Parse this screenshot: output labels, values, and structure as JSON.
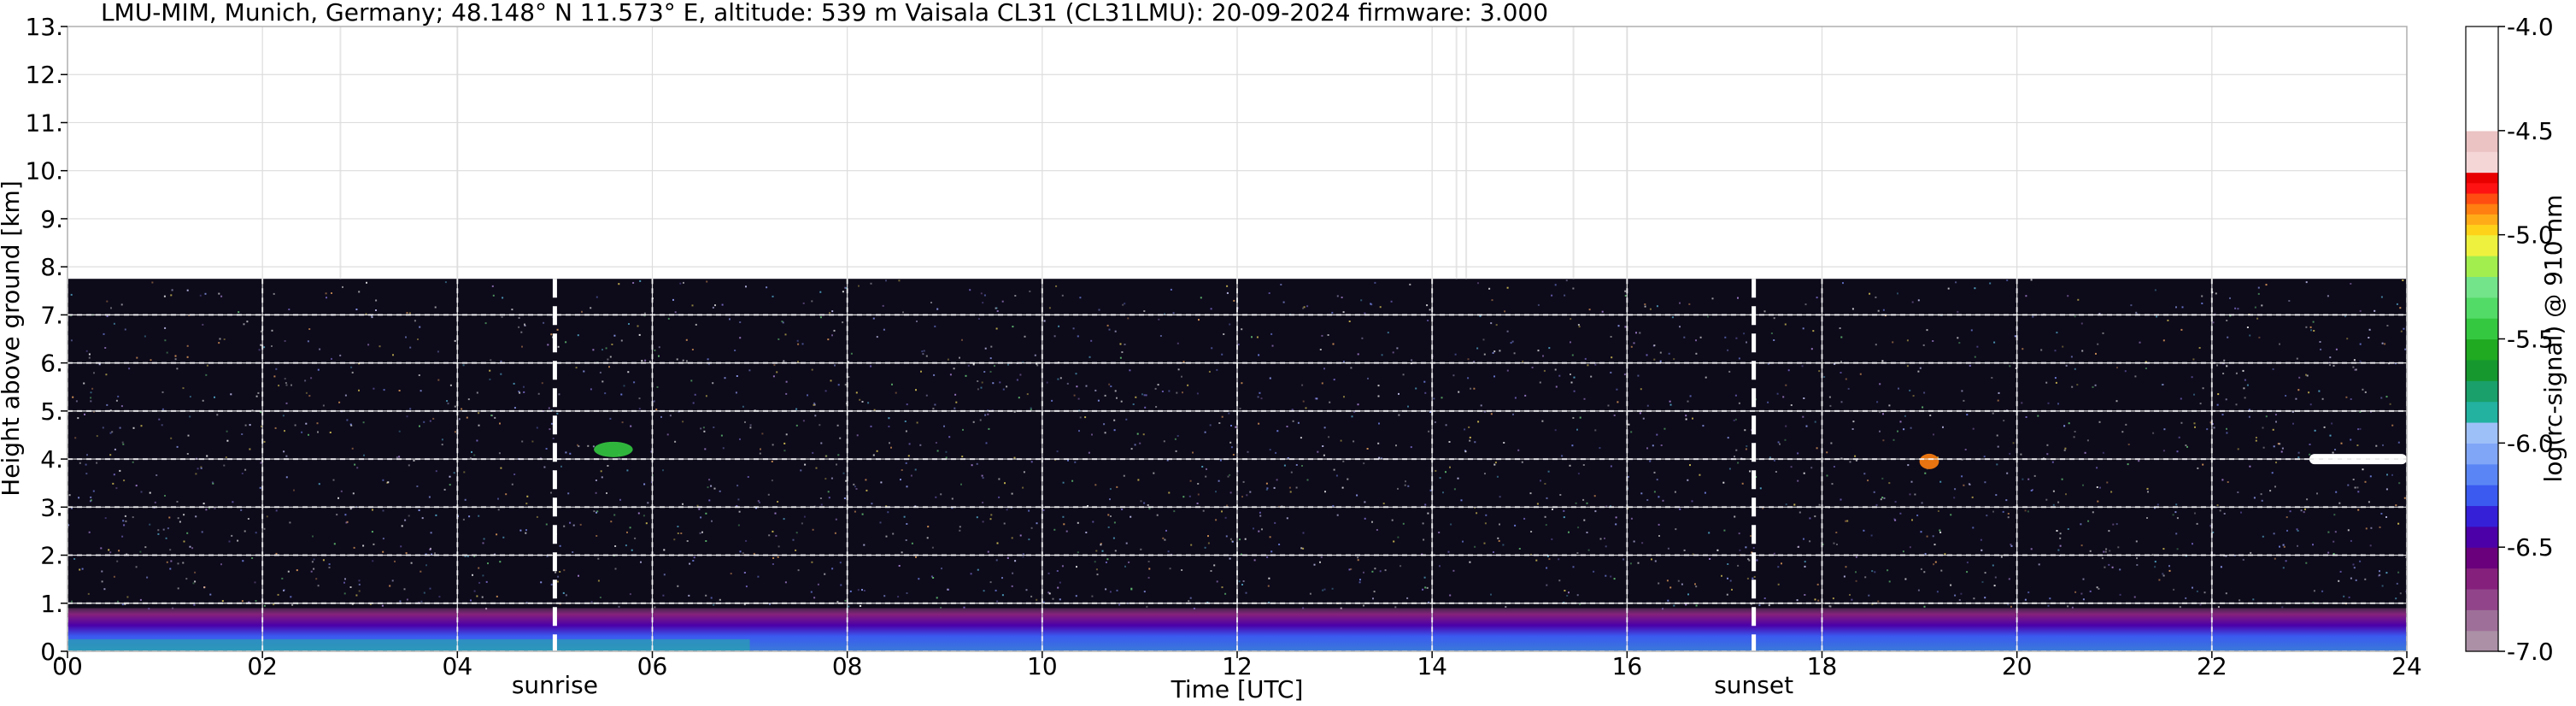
{
  "chart_data": {
    "type": "heatmap",
    "title": "LMU-MIM, Munich, Germany; 48.148° N 11.573° E, altitude: 539 m    Vaisala CL31 (CL31LMU): 20-09-2024    firmware: 3.000",
    "xlabel": "Time [UTC]",
    "ylabel": "Height above ground [km]",
    "xlim": [
      0,
      24
    ],
    "ylim": [
      0,
      13
    ],
    "x_ticks": [
      0,
      2,
      4,
      6,
      8,
      10,
      12,
      14,
      16,
      18,
      20,
      22,
      24
    ],
    "x_tick_labels": [
      "00",
      "02",
      "04",
      "06",
      "08",
      "10",
      "12",
      "14",
      "16",
      "18",
      "20",
      "22",
      "24"
    ],
    "y_ticks": [
      0,
      1,
      2,
      3,
      4,
      5,
      6,
      7,
      8,
      9,
      10,
      11,
      12,
      13
    ],
    "y_tick_labels": [
      "0.",
      "1.",
      "2.",
      "3.",
      "4.",
      "5.",
      "6.",
      "7.",
      "8.",
      "9.",
      "10.",
      "11.",
      "12.",
      "13."
    ],
    "grid": true,
    "annotations": [
      {
        "label": "sunrise",
        "x": 5.0
      },
      {
        "label": "sunset",
        "x": 17.3
      }
    ],
    "signal_top_km": 7.75,
    "colorbar": {
      "label": "log(rc-signal) @ 910 nm",
      "range": [
        -7.0,
        -4.0
      ],
      "ticks": [
        -7.0,
        -6.5,
        -6.0,
        -5.5,
        -5.0,
        -4.5,
        -4.0
      ],
      "tick_labels": [
        "-7.0",
        "-6.5",
        "-6.0",
        "-5.5",
        "-5.0",
        "-4.5",
        "-4.0"
      ],
      "colors": [
        "#ab90a6",
        "#9e7099",
        "#91448a",
        "#86207d",
        "#6a007c",
        "#4b00a8",
        "#3520d8",
        "#3a5af0",
        "#5a86f5",
        "#80a6f8",
        "#9ec0f8",
        "#23b2a0",
        "#1aa06a",
        "#16982f",
        "#1faa21",
        "#34c840",
        "#52db66",
        "#73e48a",
        "#a2ee4e",
        "#eef23e",
        "#ffd21a",
        "#ffab18",
        "#ff7f10",
        "#ff4d12",
        "#ff1212",
        "#e80000",
        "#f5d6d6",
        "#ebc3c3",
        "#ffffff"
      ],
      "color_stops": [
        -7.0,
        -6.9,
        -6.8,
        -6.7,
        -6.6,
        -6.5,
        -6.4,
        -6.3,
        -6.2,
        -6.1,
        -6.0,
        -5.9,
        -5.8,
        -5.7,
        -5.6,
        -5.5,
        -5.4,
        -5.3,
        -5.2,
        -5.1,
        -5.0,
        -4.95,
        -4.9,
        -4.85,
        -4.8,
        -4.75,
        -4.7,
        -4.6,
        -4.5
      ]
    },
    "features": [
      {
        "name": "boundary-layer",
        "x": [
          0,
          24
        ],
        "y_km": [
          0,
          0.9
        ]
      },
      {
        "name": "cloud-layer",
        "x": [
          23.0,
          24.0
        ],
        "y_km": 4.0,
        "value": -4.6
      },
      {
        "name": "aerosol-patch",
        "x": [
          5.4,
          5.8
        ],
        "y_km": 4.2,
        "value": -5.5
      },
      {
        "name": "aerosol-patch",
        "x": [
          19.0,
          19.2
        ],
        "y_km": 3.95,
        "value": -4.9
      }
    ]
  }
}
